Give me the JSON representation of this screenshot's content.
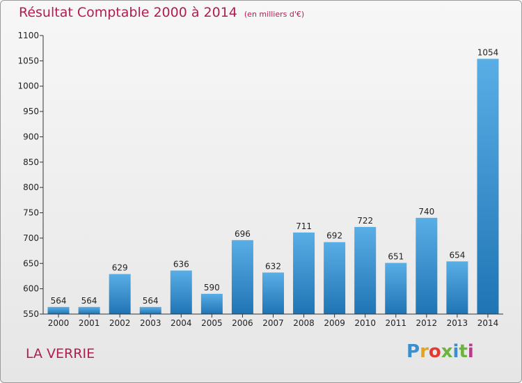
{
  "title_main": "Résultat Comptable 2000 à 2014",
  "title_unit": "(en milliers d'€)",
  "commune": "LA VERRIE",
  "logo": [
    "P",
    "r",
    "o",
    "x",
    "i",
    "t",
    "i"
  ],
  "colors": {
    "bar_top": "#5aaee6",
    "bar_bottom": "#1f74b4",
    "title": "#b01d4e"
  },
  "chart_data": {
    "type": "bar",
    "title": "Résultat Comptable 2000 à 2014",
    "ylabel": "en milliers d'€",
    "xlabel": "",
    "categories": [
      "2000",
      "2001",
      "2002",
      "2003",
      "2004",
      "2005",
      "2006",
      "2007",
      "2008",
      "2009",
      "2010",
      "2011",
      "2012",
      "2013",
      "2014"
    ],
    "values": [
      564,
      564,
      629,
      564,
      636,
      590,
      696,
      632,
      711,
      692,
      722,
      651,
      740,
      654,
      1054
    ],
    "ylim": [
      550,
      1100
    ],
    "yticks": [
      550,
      600,
      650,
      700,
      750,
      800,
      850,
      900,
      950,
      1000,
      1050,
      1100
    ],
    "grid": false
  }
}
